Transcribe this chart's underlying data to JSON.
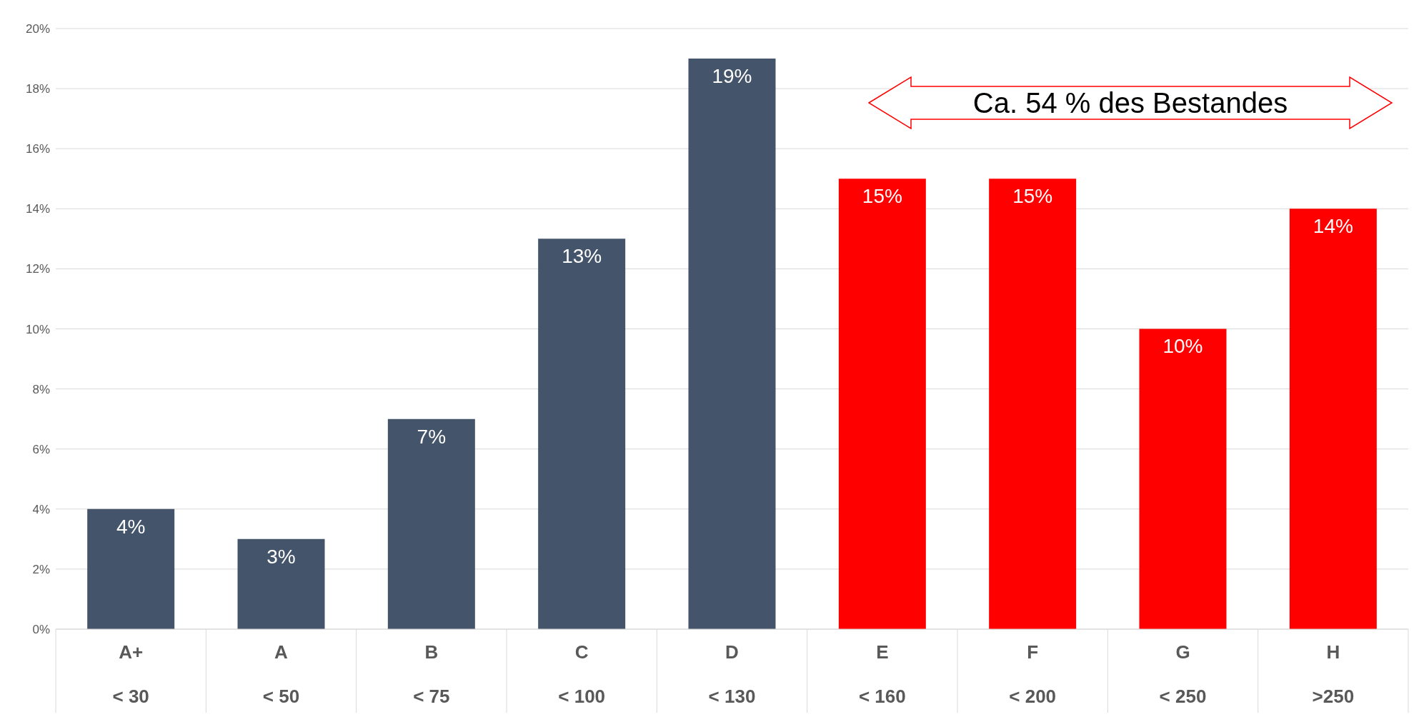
{
  "chart_data": {
    "type": "bar",
    "categories": [
      "A+\n< 30",
      "A\n< 50",
      "B\n< 75",
      "C\n< 100",
      "D\n< 130",
      "E\n< 160",
      "F\n< 200",
      "G\n< 250",
      "H\n>250"
    ],
    "values": [
      4,
      3,
      7,
      13,
      19,
      15,
      15,
      10,
      14
    ],
    "colors": [
      "#44546a",
      "#44546a",
      "#44546a",
      "#44546a",
      "#44546a",
      "#ff0000",
      "#ff0000",
      "#ff0000",
      "#ff0000"
    ],
    "value_labels": [
      "4%",
      "3%",
      "7%",
      "13%",
      "19%",
      "15%",
      "15%",
      "10%",
      "14%"
    ],
    "ylim": [
      0,
      20
    ],
    "yticks": [
      {
        "value": 0,
        "label": "0%"
      },
      {
        "value": 2,
        "label": "2%"
      },
      {
        "value": 4,
        "label": "4%"
      },
      {
        "value": 6,
        "label": "6%"
      },
      {
        "value": 8,
        "label": "8%"
      },
      {
        "value": 10,
        "label": "10%"
      },
      {
        "value": 12,
        "label": "12%"
      },
      {
        "value": 14,
        "label": "14%"
      },
      {
        "value": 16,
        "label": "16%"
      },
      {
        "value": 18,
        "label": "18%"
      },
      {
        "value": 20,
        "label": "20%"
      }
    ],
    "grid": "y",
    "annotations": [
      "Ca. 54 % des Bestandes"
    ]
  }
}
